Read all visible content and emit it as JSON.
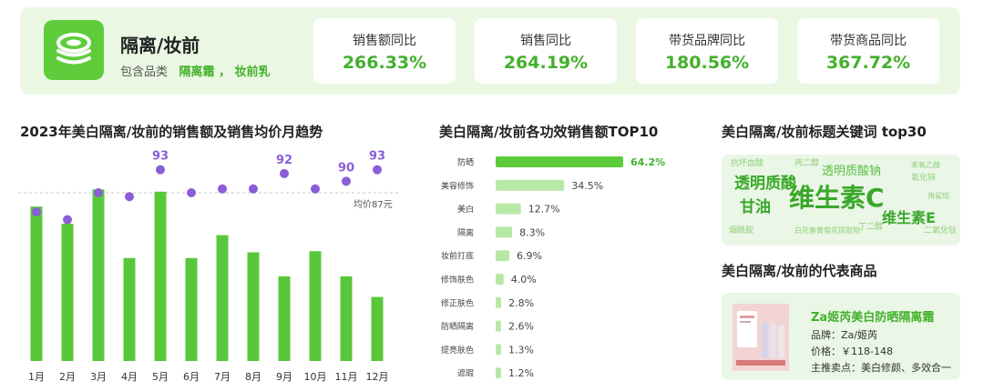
{
  "header": {
    "category_title": "隔离/妆前",
    "includes_label": "包含品类",
    "includes_items": "隔离霜 ， 妆前乳",
    "kpis": [
      {
        "label": "销售额同比",
        "value": "266.33%"
      },
      {
        "label": "销售同比",
        "value": "264.19%"
      },
      {
        "label": "带货品牌同比",
        "value": "180.56%"
      },
      {
        "label": "带货商品同比",
        "value": "367.72%"
      }
    ]
  },
  "trend_title": "2023年美白隔离/妆前的销售额及销售均价月趋势",
  "avg_label": "均价87元",
  "effects_title": "美白隔离/妆前各功效销售额TOP10",
  "keywords_title": "美白隔离/妆前标题关键词 top30",
  "product_title": "美白隔离/妆前的代表商品",
  "product": {
    "name": "Za姬芮美白防晒隔离霜",
    "brand": "品牌：Za/姬芮",
    "price": "价格：￥118-148",
    "selling_points": "主推卖点：美白修颜、多效合一"
  },
  "word_cloud": [
    {
      "text": "维生素C",
      "color": "#3aa82a"
    },
    {
      "text": "透明质酸",
      "color": "#3aa82a"
    },
    {
      "text": "甘油",
      "color": "#3aa82a"
    },
    {
      "text": "维生素E",
      "color": "#3aa82a"
    },
    {
      "text": "透明质酸钠",
      "color": "#5bbf45"
    },
    {
      "text": "烟酰胺",
      "color": "#8fd07a"
    },
    {
      "text": "丙二醇",
      "color": "#8fd07a"
    },
    {
      "text": "抗坏血酸",
      "color": "#8fd07a"
    },
    {
      "text": "氧化锌",
      "color": "#8fd07a"
    },
    {
      "text": "丁二醇",
      "color": "#8fd07a"
    },
    {
      "text": "二氧化钛",
      "color": "#8fd07a"
    },
    {
      "text": "白花春黄菊花提取物",
      "color": "#8fd07a"
    },
    {
      "text": "苯氧乙醇",
      "color": "#8fd07a"
    },
    {
      "text": "角鲨烷",
      "color": "#8fd07a"
    }
  ],
  "chart_data": [
    {
      "type": "bar",
      "categories": [
        "1月",
        "2月",
        "3月",
        "4月",
        "5月",
        "6月",
        "7月",
        "8月",
        "9月",
        "10月",
        "11月",
        "12月"
      ],
      "series": [
        {
          "values": [
            13.5,
            12.0,
            15.0,
            9.0,
            14.8,
            9.0,
            11.0,
            9.5,
            7.4,
            9.6,
            7.4,
            5.6
          ]
        },
        {
          "values": [
            82,
            80,
            87,
            86,
            93,
            87,
            88,
            88,
            92,
            88,
            90,
            93
          ]
        }
      ],
      "point_labels": {
        "4": "93",
        "8": "92",
        "10": "90",
        "11": "93"
      },
      "reference_line": 87
    },
    {
      "type": "bar",
      "orientation": "horizontal",
      "categories": [
        "防晒",
        "美容修饰",
        "美白",
        "隔离",
        "妆前打底",
        "修饰肤色",
        "修正肤色",
        "防晒隔离",
        "提亮肤色",
        "遮瑕"
      ],
      "values": [
        64.2,
        34.5,
        12.7,
        8.3,
        6.9,
        4.0,
        2.8,
        2.6,
        1.3,
        1.2
      ],
      "value_labels": [
        "64.2%",
        "34.5%",
        "12.7%",
        "8.3%",
        "6.9%",
        "4.0%",
        "2.8%",
        "2.6%",
        "1.3%",
        "1.2%"
      ]
    }
  ]
}
